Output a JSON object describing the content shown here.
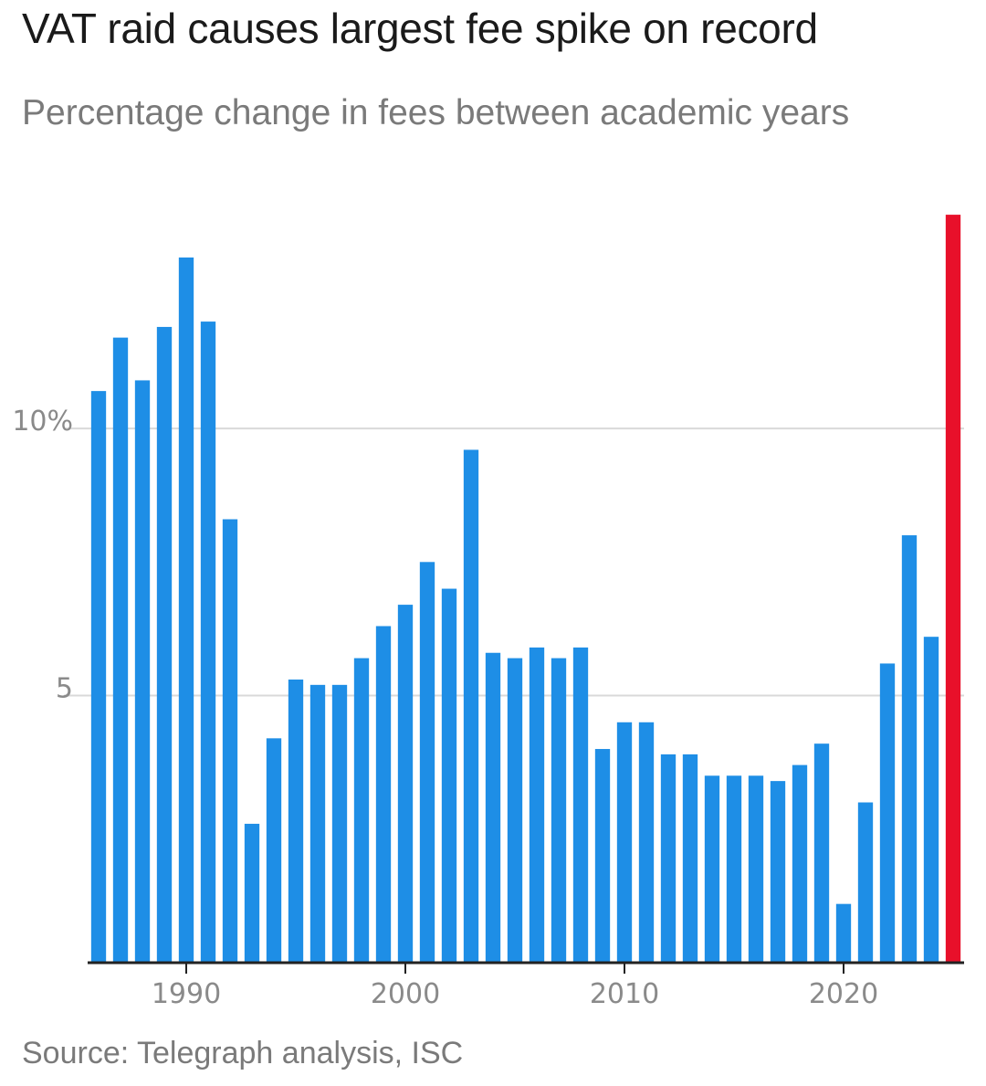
{
  "chart_data": {
    "type": "bar",
    "title": "VAT raid causes largest fee spike on record",
    "subtitle": "Percentage change in fees between academic years",
    "source": "Source: Telegraph analysis, ISC",
    "xlabel": "",
    "ylabel": "",
    "x": [
      1986,
      1987,
      1988,
      1989,
      1990,
      1991,
      1992,
      1993,
      1994,
      1995,
      1996,
      1997,
      1998,
      1999,
      2000,
      2001,
      2002,
      2003,
      2004,
      2005,
      2006,
      2007,
      2008,
      2009,
      2010,
      2011,
      2012,
      2013,
      2014,
      2015,
      2016,
      2017,
      2018,
      2019,
      2020,
      2021,
      2022,
      2023,
      2024,
      2025
    ],
    "values": [
      10.7,
      11.7,
      10.9,
      11.9,
      13.2,
      12.0,
      8.3,
      2.6,
      4.2,
      5.3,
      5.2,
      5.2,
      5.7,
      6.3,
      6.7,
      7.5,
      7.0,
      9.6,
      5.8,
      5.7,
      5.9,
      5.7,
      5.9,
      4.0,
      4.5,
      4.5,
      3.9,
      3.9,
      3.5,
      3.5,
      3.5,
      3.4,
      3.7,
      4.1,
      1.1,
      3.0,
      5.6,
      8.0,
      6.1,
      14.0
    ],
    "highlight_index": 39,
    "bar_color": "#1e8ee6",
    "highlight_color": "#e8102a",
    "ylim": [
      0,
      14.6
    ],
    "yticks": [
      {
        "value": 5,
        "label": "5"
      },
      {
        "value": 10,
        "label": "10%"
      }
    ],
    "xticks": [
      {
        "value": 1990,
        "label": "1990"
      },
      {
        "value": 2000,
        "label": "2000"
      },
      {
        "value": 2010,
        "label": "2010"
      },
      {
        "value": 2020,
        "label": "2020"
      }
    ],
    "grid": true,
    "legend": "none"
  }
}
